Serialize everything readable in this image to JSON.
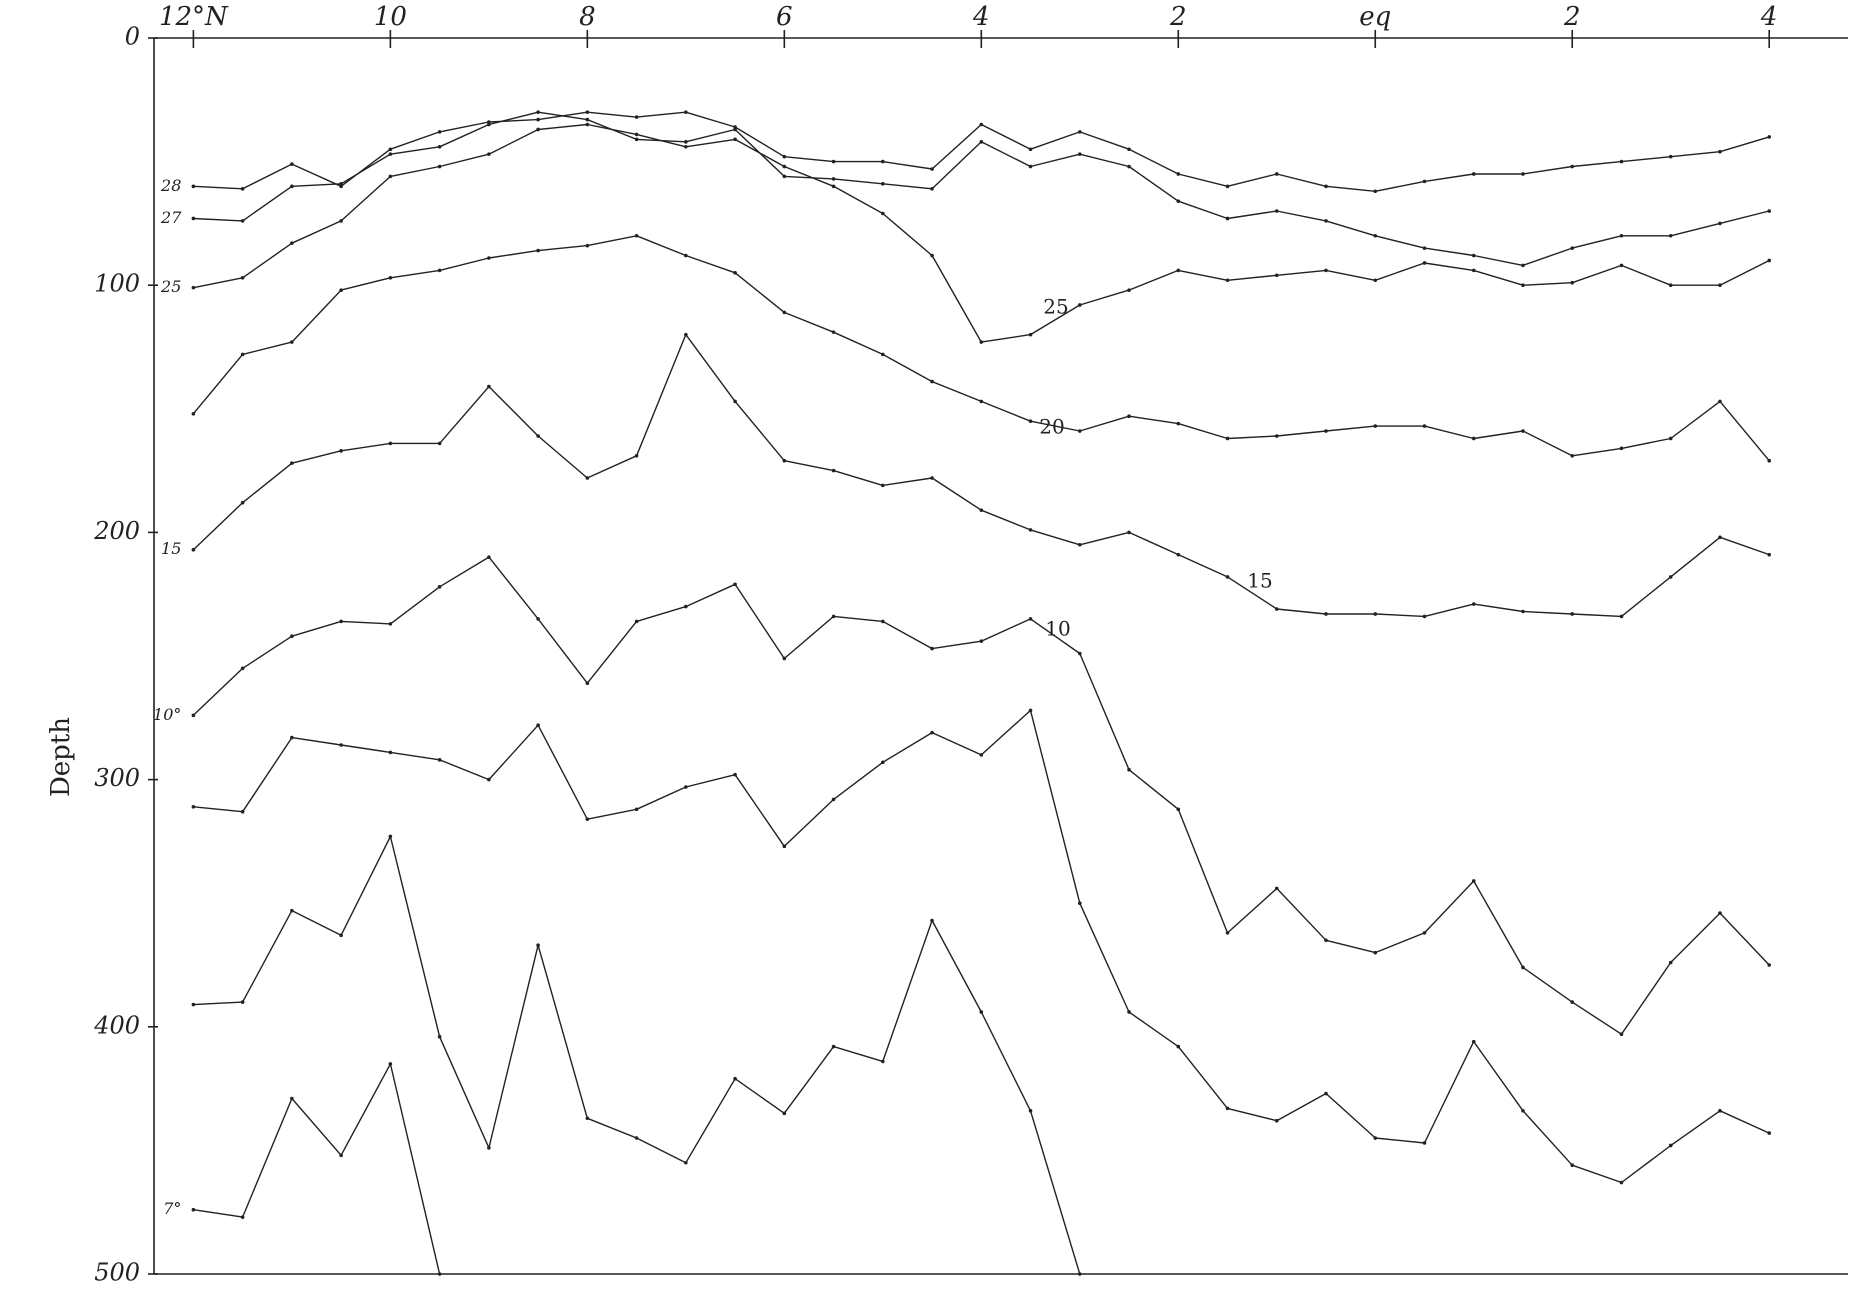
{
  "chart_data": {
    "type": "line",
    "ylabel": "Depth",
    "xlim": [
      12.4,
      -4.8
    ],
    "ylim": [
      0,
      500
    ],
    "xticks": [
      {
        "value": 12,
        "label": "12°N"
      },
      10,
      8,
      6,
      4,
      2,
      {
        "value": 0,
        "label": "eq"
      },
      {
        "value": -2,
        "label": "2"
      },
      {
        "value": -4,
        "label": "4"
      }
    ],
    "yticks": [
      0,
      100,
      200,
      300,
      400,
      500
    ],
    "color": "#222222",
    "x": [
      12,
      11.5,
      11,
      10.5,
      10,
      9.5,
      9,
      8.5,
      8,
      7.5,
      7,
      6.5,
      6,
      5.5,
      5,
      4.5,
      4,
      3.5,
      3,
      2.5,
      2,
      1.5,
      1,
      0.5,
      0,
      -0.5,
      -1,
      -1.5,
      -2,
      -2.5,
      -3,
      -3.5,
      -4
    ],
    "series": [
      {
        "name": "28",
        "values": [
          60,
          61,
          51,
          60,
          45,
          38,
          34,
          33,
          30,
          32,
          30,
          36,
          48,
          50,
          50,
          53,
          35,
          45,
          38,
          45,
          55,
          60,
          55,
          60,
          62,
          58,
          55,
          55,
          52,
          50,
          48,
          46,
          40
        ]
      },
      {
        "name": "27",
        "values": [
          73,
          74,
          60,
          59,
          47,
          44,
          35,
          30,
          33,
          41,
          42,
          37,
          56,
          57,
          59,
          61,
          42,
          52,
          47,
          52,
          66,
          73,
          70,
          74,
          80,
          85,
          88,
          92,
          85,
          80,
          80,
          75,
          70
        ]
      },
      {
        "name": "25",
        "values": [
          101,
          97,
          83,
          74,
          56,
          52,
          47,
          37,
          35,
          39,
          44,
          41,
          52,
          60,
          71,
          88,
          123,
          120,
          108,
          102,
          94,
          98,
          96,
          94,
          98,
          91,
          94,
          100,
          99,
          92,
          100,
          100,
          90
        ]
      },
      {
        "values": [
          152,
          128,
          123,
          102,
          97,
          94,
          89,
          86,
          84,
          80,
          88,
          95,
          111,
          119,
          128,
          139,
          147,
          155,
          159,
          153,
          156,
          162,
          161,
          159,
          157,
          157,
          162,
          159,
          169,
          166,
          162,
          147,
          171
        ]
      },
      {
        "name": "15",
        "values": [
          207,
          188,
          172,
          167,
          164,
          164,
          141,
          161,
          178,
          169,
          120,
          147,
          171,
          175,
          181,
          178,
          191,
          199,
          205,
          200,
          209,
          218,
          231,
          233,
          233,
          234,
          229,
          232,
          233,
          234,
          218,
          202,
          209
        ]
      },
      {
        "name": "10°",
        "values": [
          274,
          255,
          242,
          236,
          237,
          222,
          210,
          235,
          261,
          236,
          230,
          221,
          251,
          234,
          236,
          247,
          244,
          235,
          249,
          296,
          312,
          362,
          344,
          365,
          370,
          362,
          341,
          376,
          390,
          403,
          374,
          354,
          375
        ]
      },
      {
        "values": [
          311,
          313,
          283,
          286,
          289,
          292,
          300,
          278,
          316,
          312,
          303,
          298,
          327,
          308,
          293,
          281,
          290,
          272,
          350,
          394,
          408,
          433,
          438,
          427,
          445,
          447,
          406,
          434,
          456,
          463,
          448,
          434,
          443
        ]
      },
      {
        "values": [
          391,
          390,
          353,
          363,
          323,
          404,
          449,
          367,
          437,
          445,
          455,
          421,
          435,
          408,
          414,
          357,
          394,
          434,
          500,
          null,
          null,
          null,
          null,
          null,
          null,
          null,
          null,
          null,
          null,
          null,
          null,
          null,
          null
        ]
      },
      {
        "name": "7°",
        "values": [
          474,
          477,
          429,
          452,
          415,
          500,
          null,
          null,
          null,
          null,
          null,
          null,
          null,
          null,
          null,
          null,
          null,
          null,
          null,
          null,
          null,
          null,
          null,
          null,
          null,
          null,
          null,
          null,
          null,
          null,
          null,
          null,
          null
        ]
      }
    ],
    "annotations": [
      "25",
      "20",
      "15",
      "10"
    ]
  }
}
